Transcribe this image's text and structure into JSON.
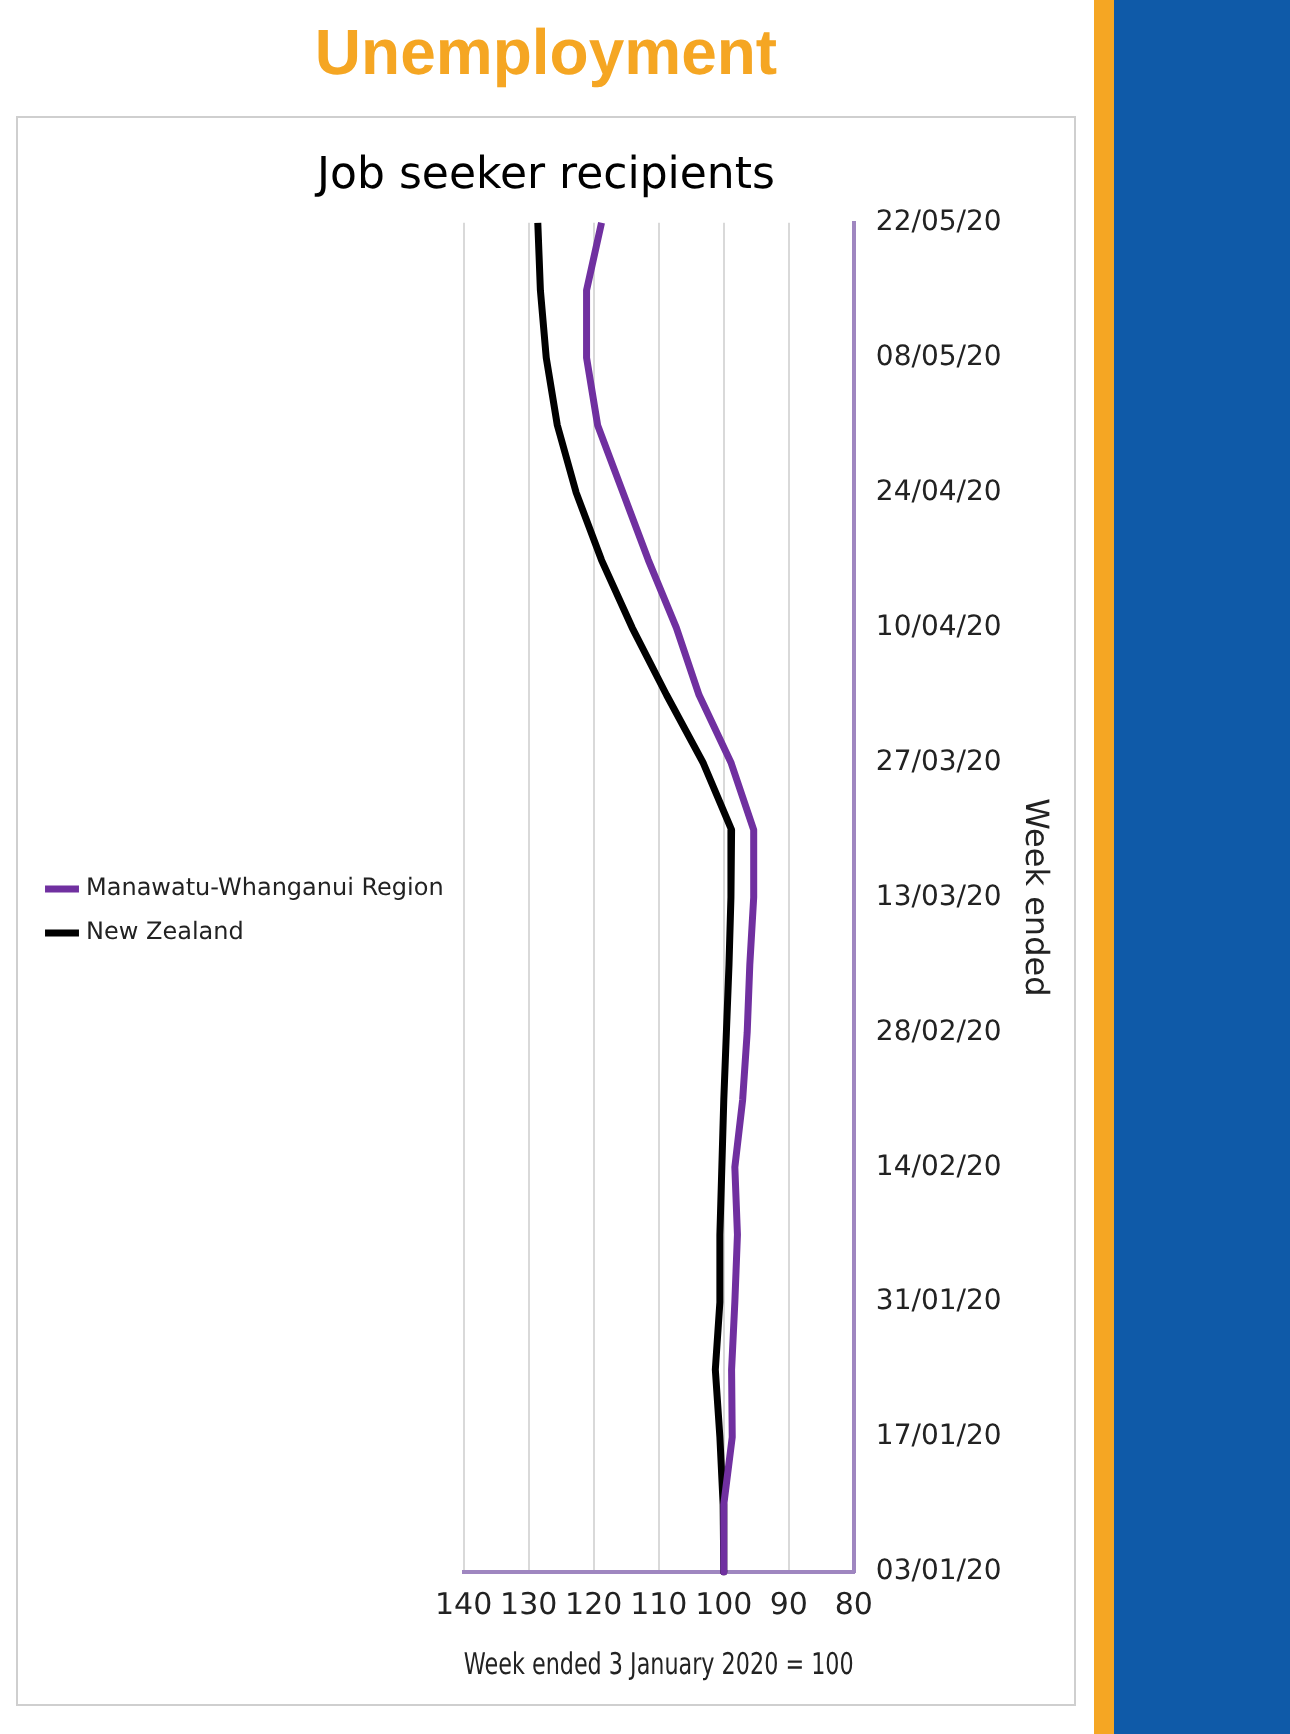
{
  "chart_data": {
    "type": "line",
    "title": "Unemployment",
    "subtitle": "Job seeker recipients",
    "xlabel": "Week ended 3 January 2020 = 100",
    "ylabel": "Week ended",
    "orientation": "horizontal",
    "categories": [
      "22/05/20",
      null,
      "08/05/20",
      null,
      "24/04/20",
      null,
      "10/04/20",
      null,
      "27/03/20",
      null,
      "13/03/20",
      null,
      "28/02/20",
      null,
      "14/02/20",
      null,
      "31/01/20",
      null,
      "17/01/20",
      null,
      "03/01/20"
    ],
    "series": [
      {
        "name": "Manawatu-Whanganui Region",
        "color": "#7030a0",
        "values": [
          118.8,
          121.1,
          121.1,
          119.4,
          115.5,
          111.6,
          107.3,
          103.8,
          98.9,
          95.4,
          95.4,
          96,
          96.4,
          97.1,
          98.3,
          97.9,
          98.3,
          98.8,
          98.7,
          100,
          100
        ]
      },
      {
        "name": "New Zealand",
        "color": "#000000",
        "values": [
          128.6,
          128.2,
          127.3,
          125.6,
          122.7,
          118.8,
          114.1,
          108.8,
          103.2,
          98.8,
          98.9,
          99.2,
          99.6,
          100,
          100.3,
          100.6,
          100.6,
          101.3,
          100.6,
          100.1,
          100
        ]
      }
    ],
    "xlim": [
      140,
      80
    ],
    "xticks": [
      80,
      90,
      100,
      110,
      120,
      130,
      140
    ],
    "grid": "x",
    "legend": "left",
    "marker": "none",
    "line_style": "solid"
  }
}
